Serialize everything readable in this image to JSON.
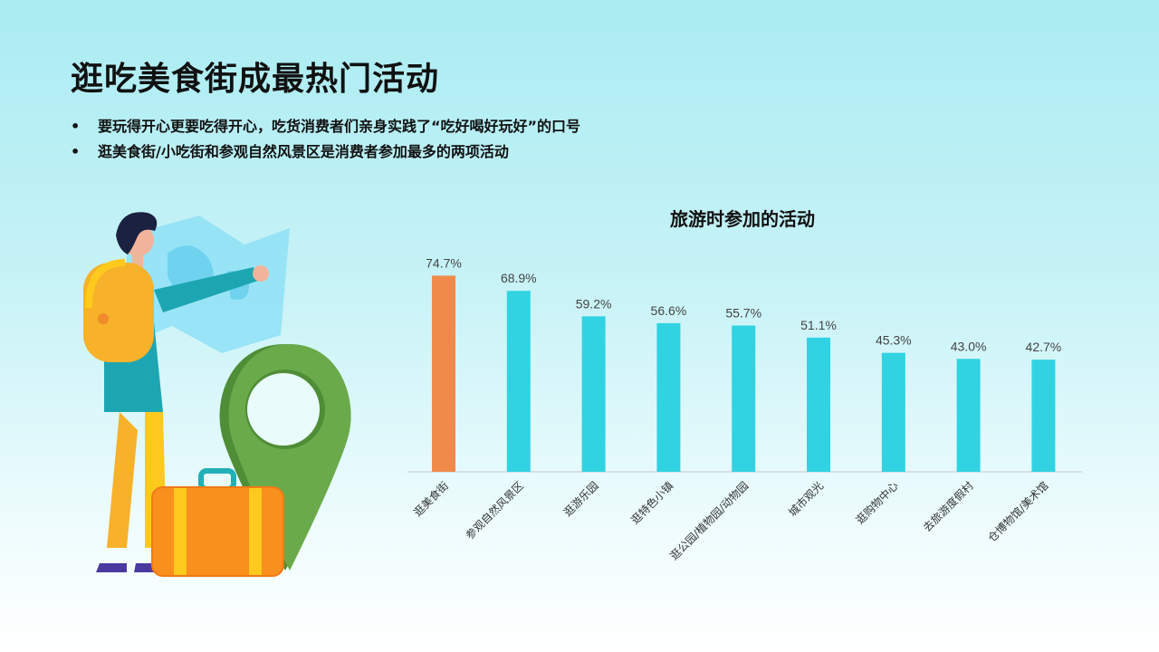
{
  "page": {
    "title": "逛吃美食街成最热门活动",
    "bullets": [
      "要玩得开心更要吃得开心，吃货消费者们亲身实践了“吃好喝好玩好”的口号",
      "逛美食街/小吃街和参观自然风景区是消费者参加最多的两项活动"
    ]
  },
  "colors": {
    "highlight": "#f08a4b",
    "bar": "#31d3e2",
    "axis": "#c8c8c8"
  },
  "chart_data": {
    "type": "bar",
    "title": "旅游时参加的活动",
    "categories": [
      "逛美食街",
      "参观自然风景区",
      "逛游乐园",
      "逛特色小镇",
      "逛公园/植物园/动物园",
      "城市观光",
      "逛购物中心",
      "去旅游度假村",
      "仓博物馆/美术馆"
    ],
    "values": [
      74.7,
      68.9,
      59.2,
      56.6,
      55.7,
      51.1,
      45.3,
      43.0,
      42.7
    ],
    "value_labels": [
      "74.7%",
      "68.9%",
      "59.2%",
      "56.6%",
      "55.7%",
      "51.1%",
      "45.3%",
      "43.0%",
      "42.7%"
    ],
    "highlight_index": 0,
    "unit": "%",
    "ylim": [
      0,
      80
    ],
    "grid": false,
    "legend": "none"
  }
}
